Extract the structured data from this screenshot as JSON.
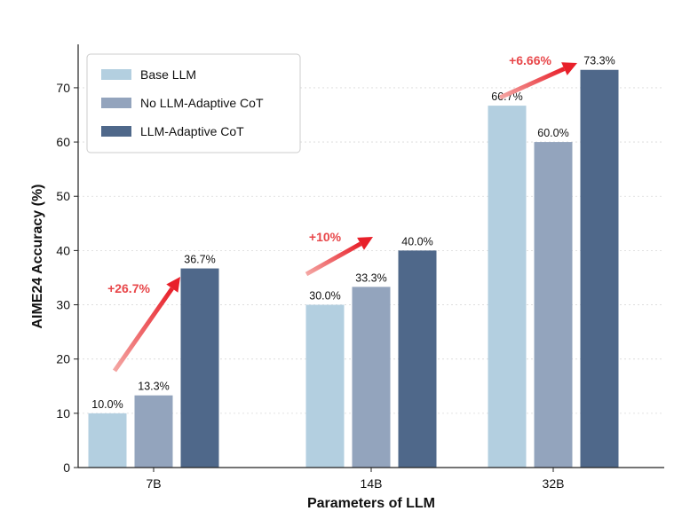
{
  "chart_data": {
    "type": "bar",
    "title": "",
    "xlabel": "Parameters of LLM",
    "ylabel": "AIME24 Accuracy (%)",
    "ylim": [
      0,
      78
    ],
    "yticks": [
      0,
      10,
      20,
      30,
      40,
      50,
      60,
      70
    ],
    "grid": "horizontal dotted",
    "legend_position": "top-left",
    "categories": [
      "7B",
      "14B",
      "32B"
    ],
    "series": [
      {
        "name": "Base LLM",
        "color": "#b3cfe0",
        "values": [
          10.0,
          30.0,
          66.7
        ],
        "labels": [
          "10.0%",
          "30.0%",
          "66.7%"
        ]
      },
      {
        "name": "No LLM-Adaptive CoT",
        "color": "#93a4bd",
        "values": [
          13.3,
          33.3,
          60.0
        ],
        "labels": [
          "13.3%",
          "33.3%",
          "60.0%"
        ]
      },
      {
        "name": "LLM-Adaptive CoT",
        "color": "#4f688a",
        "values": [
          36.7,
          40.0,
          73.3
        ],
        "labels": [
          "36.7%",
          "40.0%",
          "73.3%"
        ]
      }
    ],
    "annotations": [
      {
        "category": "7B",
        "text": "+26.7%",
        "color": "#e8474a"
      },
      {
        "category": "14B",
        "text": "+10%",
        "color": "#e8474a"
      },
      {
        "category": "32B",
        "text": "+6.66%",
        "color": "#e8474a"
      }
    ]
  }
}
